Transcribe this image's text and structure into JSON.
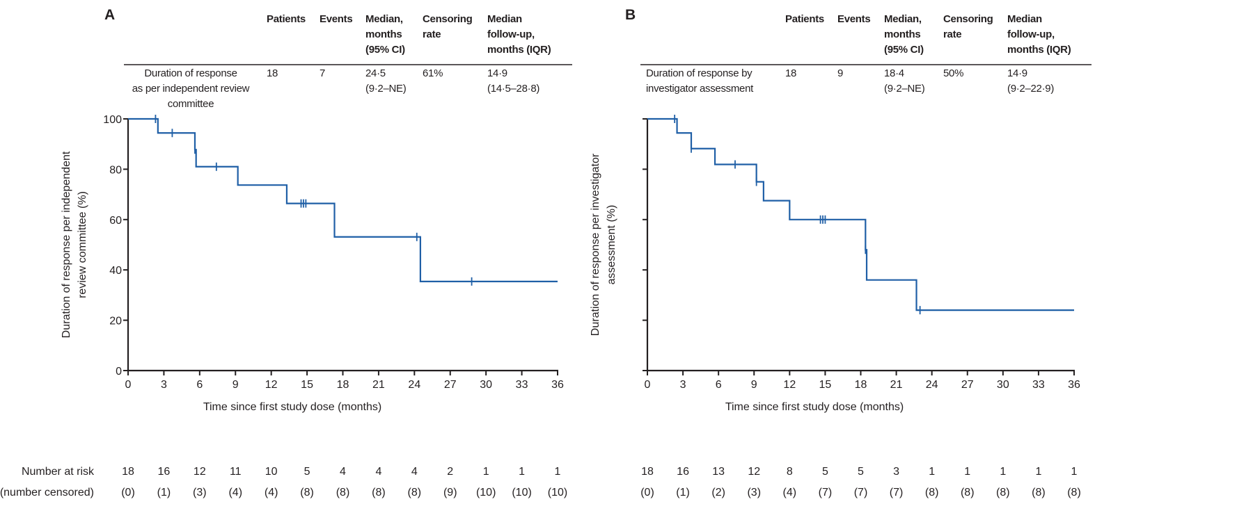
{
  "panels": [
    {
      "letter": "A",
      "table": {
        "headers": [
          [
            "Patients"
          ],
          [
            "Events"
          ],
          [
            "Median,",
            "months",
            "(95% CI)"
          ],
          [
            "Censoring",
            "rate"
          ],
          [
            "Median",
            "follow-up,",
            "months (IQR)"
          ]
        ],
        "row": {
          "label": [
            "Duration of response",
            "as per independent review",
            "committee"
          ],
          "cells": [
            [
              "18"
            ],
            [
              "7"
            ],
            [
              "24·5",
              "(9·2–NE)"
            ],
            [
              "61%"
            ],
            [
              "14·9",
              "(14·5–28·8)"
            ]
          ]
        }
      },
      "at_risk_label": "Number at risk",
      "censored_label": "(number censored)",
      "at_risk": [
        "18",
        "16",
        "12",
        "11",
        "10",
        "5",
        "4",
        "4",
        "4",
        "2",
        "1",
        "1",
        "1"
      ],
      "censored": [
        "(0)",
        "(1)",
        "(3)",
        "(4)",
        "(4)",
        "(8)",
        "(8)",
        "(8)",
        "(8)",
        "(9)",
        "(10)",
        "(10)",
        "(10)"
      ]
    },
    {
      "letter": "B",
      "table": {
        "headers": [
          [
            "Patients"
          ],
          [
            "Events"
          ],
          [
            "Median,",
            "months",
            "(95% CI)"
          ],
          [
            "Censoring",
            "rate"
          ],
          [
            "Median",
            "follow-up,",
            "months (IQR)"
          ]
        ],
        "row": {
          "label": [
            "Duration of response by",
            "investigator assessment"
          ],
          "cells": [
            [
              "18"
            ],
            [
              "9"
            ],
            [
              "18·4",
              "(9·2–NE)"
            ],
            [
              "50%"
            ],
            [
              "14·9",
              "(9·2–22·9)"
            ]
          ]
        }
      },
      "at_risk": [
        "18",
        "16",
        "13",
        "12",
        "8",
        "5",
        "5",
        "3",
        "1",
        "1",
        "1",
        "1",
        "1"
      ],
      "censored": [
        "(0)",
        "(1)",
        "(2)",
        "(3)",
        "(4)",
        "(7)",
        "(7)",
        "(7)",
        "(8)",
        "(8)",
        "(8)",
        "(8)",
        "(8)"
      ]
    }
  ],
  "colors": {
    "curve": "#1f5fa6",
    "axis": "#231f20"
  },
  "chart_data": [
    {
      "type": "line",
      "subtype": "kaplan-meier",
      "xlabel": "Time since first study dose (months)",
      "ylabel": [
        "Duration of response per independent",
        "review committee (%)"
      ],
      "xlim": [
        0,
        36
      ],
      "ylim": [
        0,
        100
      ],
      "xticks": [
        "0",
        "3",
        "6",
        "9",
        "12",
        "15",
        "18",
        "21",
        "24",
        "27",
        "30",
        "33",
        "36"
      ],
      "yticks": [
        "0",
        "20",
        "40",
        "60",
        "80",
        "100"
      ],
      "show_ytick_labels": true,
      "steps": [
        [
          0,
          100
        ],
        [
          2.5,
          94.4
        ],
        [
          5.6,
          87.8
        ],
        [
          5.7,
          81.0
        ],
        [
          9.2,
          73.7
        ],
        [
          13.3,
          66.4
        ],
        [
          17.3,
          53.1
        ],
        [
          24.5,
          35.4
        ],
        [
          36,
          35.4
        ]
      ],
      "censors": [
        [
          2.3,
          100
        ],
        [
          3.7,
          94.4
        ],
        [
          5.6,
          87.8
        ],
        [
          7.4,
          81.0
        ],
        [
          14.5,
          66.4
        ],
        [
          14.7,
          66.4
        ],
        [
          14.9,
          66.4
        ],
        [
          24.2,
          53.1
        ],
        [
          28.8,
          35.4
        ]
      ]
    },
    {
      "type": "line",
      "subtype": "kaplan-meier",
      "xlabel": "Time since first study dose (months)",
      "ylabel": [
        "Duration of response per investigator",
        "assessment (%)"
      ],
      "xlim": [
        0,
        36
      ],
      "ylim": [
        0,
        100
      ],
      "xticks": [
        "0",
        "3",
        "6",
        "9",
        "12",
        "15",
        "18",
        "21",
        "24",
        "27",
        "30",
        "33",
        "36"
      ],
      "yticks": [
        "0",
        "20",
        "40",
        "60",
        "80",
        "100"
      ],
      "show_ytick_labels": false,
      "steps": [
        [
          0,
          100
        ],
        [
          2.5,
          94.4
        ],
        [
          3.7,
          88.2
        ],
        [
          5.7,
          81.9
        ],
        [
          9.2,
          75.0
        ],
        [
          9.8,
          67.5
        ],
        [
          12.0,
          60.0
        ],
        [
          18.4,
          48.0
        ],
        [
          18.5,
          36.0
        ],
        [
          22.7,
          24.0
        ],
        [
          36,
          24.0
        ]
      ],
      "censors": [
        [
          2.3,
          100
        ],
        [
          3.7,
          88.2
        ],
        [
          7.4,
          81.9
        ],
        [
          9.2,
          75.0
        ],
        [
          14.6,
          60.0
        ],
        [
          14.8,
          60.0
        ],
        [
          15.0,
          60.0
        ],
        [
          18.4,
          48.0
        ],
        [
          23.0,
          24.0
        ]
      ]
    }
  ]
}
